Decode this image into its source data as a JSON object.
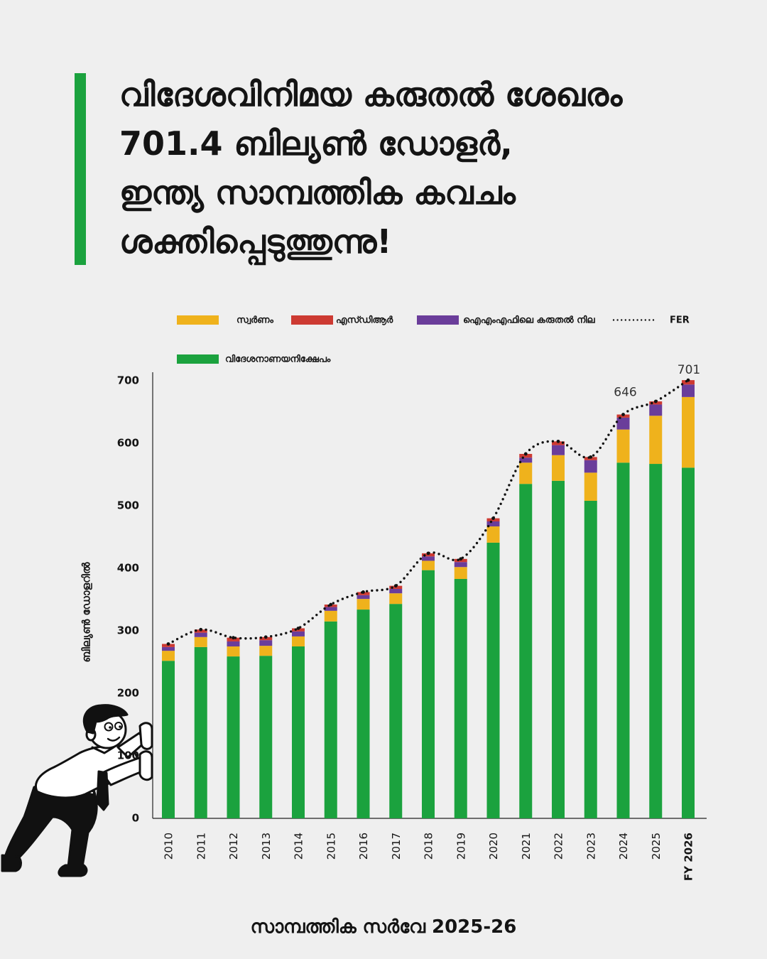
{
  "title_lines": [
    "വിദേശവിനിമയ കരുതൽ ശേഖരം",
    "701.4 ബില്യൺ ഡോളർ,",
    "ഇന്ത്യ സാമ്പത്തിക കവചം",
    "ശക്തിപ്പെടുത്തുന്നു!"
  ],
  "footer": "സാമ്പത്തിക സർവേ 2025-26",
  "colors": {
    "background": "#efefef",
    "accent": "#1ba23e",
    "text": "#141414"
  },
  "chart_data": {
    "type": "bar",
    "stacked": true,
    "categories": [
      "2010",
      "2011",
      "2012",
      "2013",
      "2014",
      "2015",
      "2016",
      "2017",
      "2018",
      "2019",
      "2020",
      "2021",
      "2022",
      "2023",
      "2024",
      "2025",
      "FY 2026"
    ],
    "series": [
      {
        "name": "വിദേശനാണയനിക്ഷേപം",
        "type": "bar",
        "color": "#1ba23e",
        "values": [
          252,
          274,
          259,
          260,
          275,
          315,
          334,
          343,
          397,
          383,
          441,
          535,
          540,
          508,
          569,
          567,
          561
        ]
      },
      {
        "name": "സ്വർണം",
        "type": "bar",
        "color": "#efb21c",
        "values": [
          16,
          16,
          16,
          16,
          16,
          17,
          17,
          17,
          15,
          19,
          26,
          34,
          41,
          45,
          53,
          77,
          113
        ]
      },
      {
        "name": "ഐഎംഎഫിലെ കരുതൽ നില",
        "type": "bar",
        "color": "#6a3d9a",
        "values": [
          6,
          7,
          8,
          9,
          8,
          6,
          6,
          7,
          7,
          8,
          8,
          8,
          16,
          20,
          19,
          18,
          20
        ]
      },
      {
        "name": "എസ്ഡിആർ",
        "type": "bar",
        "color": "#cd3a32",
        "values": [
          5,
          5,
          6,
          5,
          5,
          4,
          5,
          5,
          5,
          5,
          5,
          6,
          6,
          5,
          5,
          5,
          7
        ]
      },
      {
        "name": "FER",
        "type": "line",
        "style": "dotted",
        "color": "#111111",
        "values": [
          279,
          302,
          289,
          290,
          304,
          342,
          362,
          372,
          424,
          415,
          480,
          583,
          603,
          578,
          646,
          667,
          701
        ]
      }
    ],
    "data_labels": [
      {
        "category": "2024",
        "text": "646"
      },
      {
        "category": "FY 2026",
        "text": "701"
      }
    ],
    "ylabel": "ബില്യൺ ഡോളറിൽ",
    "ylim": [
      0,
      700
    ],
    "yticks": [
      0,
      100,
      200,
      300,
      400,
      500,
      600,
      700
    ],
    "grid": false,
    "legend": {
      "placement": "top",
      "order": [
        1,
        3,
        2,
        4,
        0
      ]
    }
  }
}
